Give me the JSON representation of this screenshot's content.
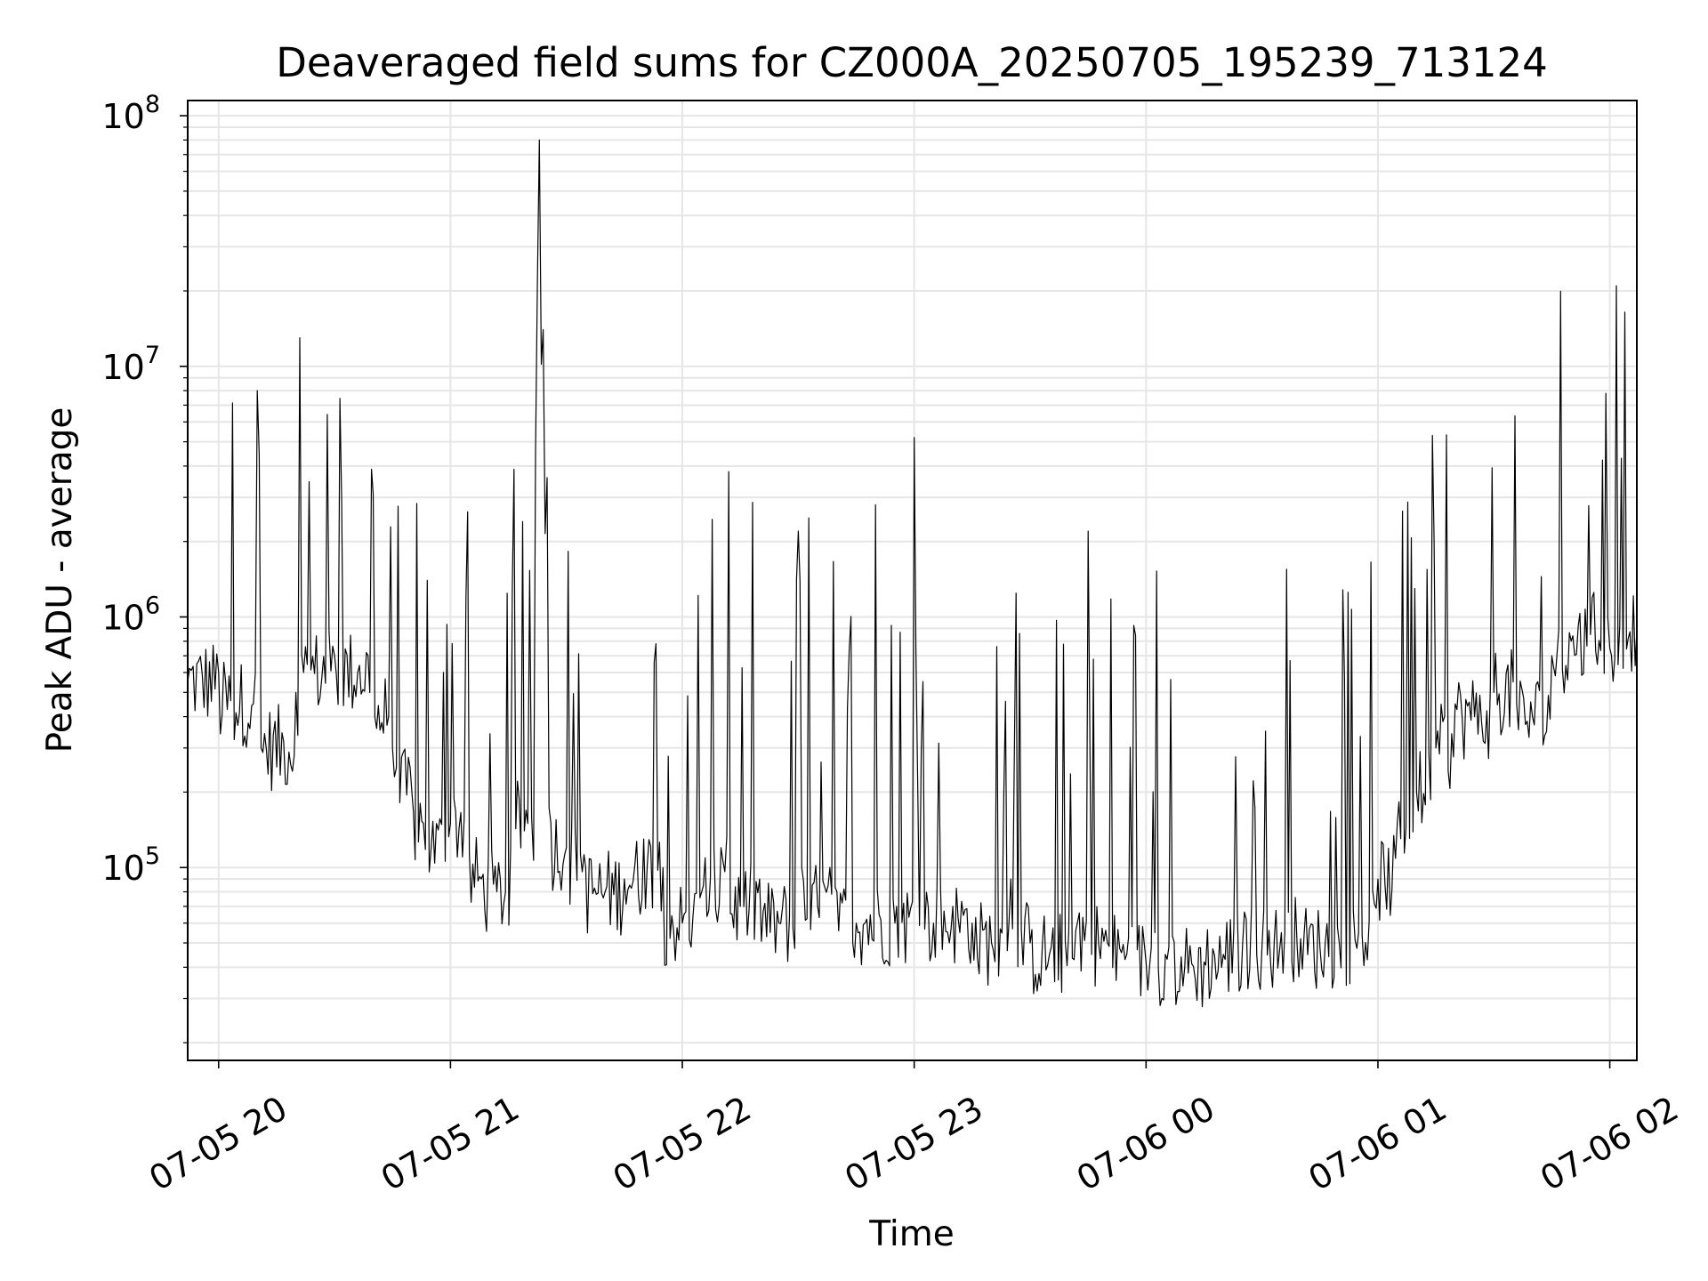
{
  "chart_data": {
    "type": "line",
    "title": "Deaveraged field sums for CZ000A_20250705_195239_713124",
    "xlabel": "Time",
    "ylabel": "Peak ADU - average",
    "yscale": "log",
    "grid": true,
    "ylim": [
      17000,
      115000000
    ],
    "xlim": [
      "2025-07-05 19:52",
      "2025-07-06 02:07"
    ],
    "x_ticks": [
      "07-05 20",
      "07-05 21",
      "07-05 22",
      "07-05 23",
      "07-06 00",
      "07-06 01",
      "07-06 02"
    ],
    "y_ticks": [
      {
        "base": "10",
        "exp": "5"
      },
      {
        "base": "10",
        "exp": "6"
      },
      {
        "base": "10",
        "exp": "7"
      },
      {
        "base": "10",
        "exp": "8"
      }
    ],
    "series": [
      {
        "color": "#000000",
        "x": [
          "2025-07-05 19:52",
          "2025-07-05 20:00",
          "2025-07-05 20:09",
          "2025-07-05 20:10",
          "2025-07-05 20:11",
          "2025-07-05 20:20",
          "2025-07-05 20:21",
          "2025-07-05 20:22",
          "2025-07-05 20:30",
          "2025-07-05 20:36",
          "2025-07-05 20:40",
          "2025-07-05 20:44",
          "2025-07-05 20:45",
          "2025-07-05 20:46",
          "2025-07-05 20:50",
          "2025-07-05 20:53",
          "2025-07-05 20:54",
          "2025-07-05 20:55",
          "2025-07-05 21:00",
          "2025-07-05 21:04",
          "2025-07-05 21:08",
          "2025-07-05 21:12",
          "2025-07-05 21:16",
          "2025-07-05 21:20",
          "2025-07-05 21:22",
          "2025-07-05 21:23",
          "2025-07-05 21:24",
          "2025-07-05 21:26",
          "2025-07-05 21:30",
          "2025-07-05 21:35",
          "2025-07-05 21:40",
          "2025-07-05 21:45",
          "2025-07-05 21:50",
          "2025-07-05 21:55",
          "2025-07-05 22:00",
          "2025-07-05 22:05",
          "2025-07-05 22:10",
          "2025-07-05 22:12",
          "2025-07-05 22:15",
          "2025-07-05 22:20",
          "2025-07-05 22:25",
          "2025-07-05 22:30",
          "2025-07-05 22:35",
          "2025-07-05 22:40",
          "2025-07-05 22:45",
          "2025-07-05 22:50",
          "2025-07-05 22:55",
          "2025-07-05 23:00",
          "2025-07-05 23:05",
          "2025-07-05 23:10",
          "2025-07-05 23:15",
          "2025-07-05 23:20",
          "2025-07-05 23:25",
          "2025-07-05 23:30",
          "2025-07-05 23:35",
          "2025-07-05 23:40",
          "2025-07-05 23:45",
          "2025-07-05 23:50",
          "2025-07-05 23:55",
          "2025-07-06 00:00",
          "2025-07-06 00:05",
          "2025-07-06 00:10",
          "2025-07-06 00:15",
          "2025-07-06 00:20",
          "2025-07-06 00:25",
          "2025-07-06 00:30",
          "2025-07-06 00:35",
          "2025-07-06 00:40",
          "2025-07-06 00:45",
          "2025-07-06 00:50",
          "2025-07-06 00:55",
          "2025-07-06 01:00",
          "2025-07-06 01:05",
          "2025-07-06 01:10",
          "2025-07-06 01:15",
          "2025-07-06 01:20",
          "2025-07-06 01:25",
          "2025-07-06 01:30",
          "2025-07-06 01:35",
          "2025-07-06 01:40",
          "2025-07-06 01:45",
          "2025-07-06 01:50",
          "2025-07-06 01:55",
          "2025-07-06 01:59",
          "2025-07-06 02:00",
          "2025-07-06 02:03",
          "2025-07-06 02:07"
        ],
        "y": [
          550000,
          600000,
          450000,
          8000000,
          300000,
          500000,
          13000000,
          600000,
          700000,
          600000,
          3100000,
          400000,
          300000,
          250000,
          200000,
          150000,
          1400000,
          120000,
          150000,
          1200000,
          90000,
          80000,
          1300000,
          150000,
          4500000,
          80000000,
          14000000,
          150000,
          120000,
          100000,
          80000,
          90000,
          130000,
          100000,
          60000,
          80000,
          120000,
          3800000,
          70000,
          90000,
          60000,
          2200000,
          70000,
          80000,
          60000,
          2800000,
          60000,
          5200000,
          60000,
          70000,
          60000,
          50000,
          90000,
          50000,
          45000,
          55000,
          2200000,
          50000,
          45000,
          42000,
          45000,
          40000,
          42000,
          45000,
          50000,
          48000,
          55000,
          52000,
          48000,
          50000,
          55000,
          90000,
          150000,
          200000,
          300000,
          450000,
          400000,
          500000,
          550000,
          400000,
          700000,
          800000,
          850000,
          7800000,
          750000,
          4300000,
          900000
        ]
      }
    ]
  }
}
